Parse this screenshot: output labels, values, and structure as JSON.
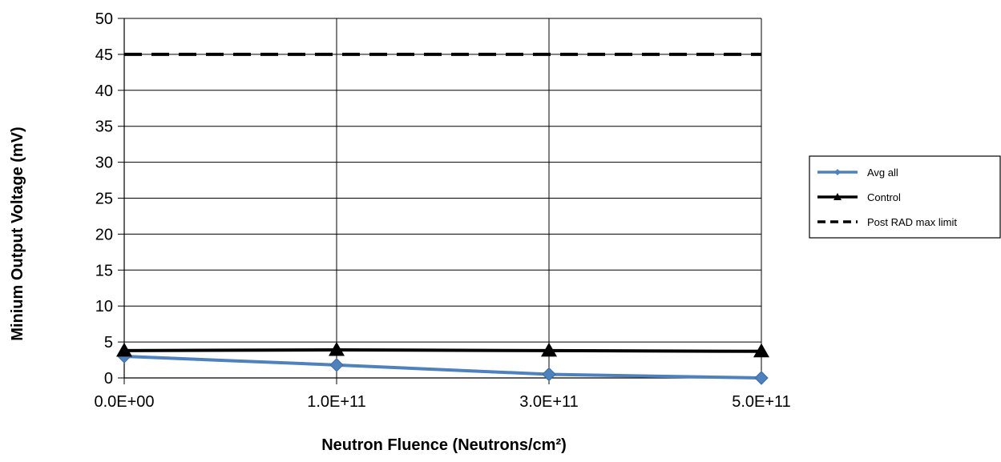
{
  "chart_data": {
    "type": "line",
    "title": "",
    "xlabel": "Neutron Fluence (Neutrons/cm²)",
    "ylabel": "Minium Output Voltage (mV)",
    "categories": [
      "0.0E+00",
      "1.0E+11",
      "3.0E+11",
      "5.0E+11"
    ],
    "ylim": [
      0,
      50
    ],
    "yticks": [
      0,
      5,
      10,
      15,
      20,
      25,
      30,
      35,
      40,
      45,
      50
    ],
    "grid": true,
    "legend_position": "right",
    "series": [
      {
        "name": "Avg all",
        "values": [
          3.0,
          1.8,
          0.5,
          0.0
        ],
        "color": "#4f81bd",
        "marker": "diamond",
        "style": "solid"
      },
      {
        "name": "Control",
        "values": [
          3.8,
          3.9,
          3.8,
          3.7
        ],
        "color": "#000000",
        "marker": "triangle",
        "style": "solid"
      },
      {
        "name": "Post RAD max limit",
        "values": [
          45,
          45,
          45,
          45
        ],
        "color": "#000000",
        "marker": "none",
        "style": "dashed"
      }
    ]
  }
}
